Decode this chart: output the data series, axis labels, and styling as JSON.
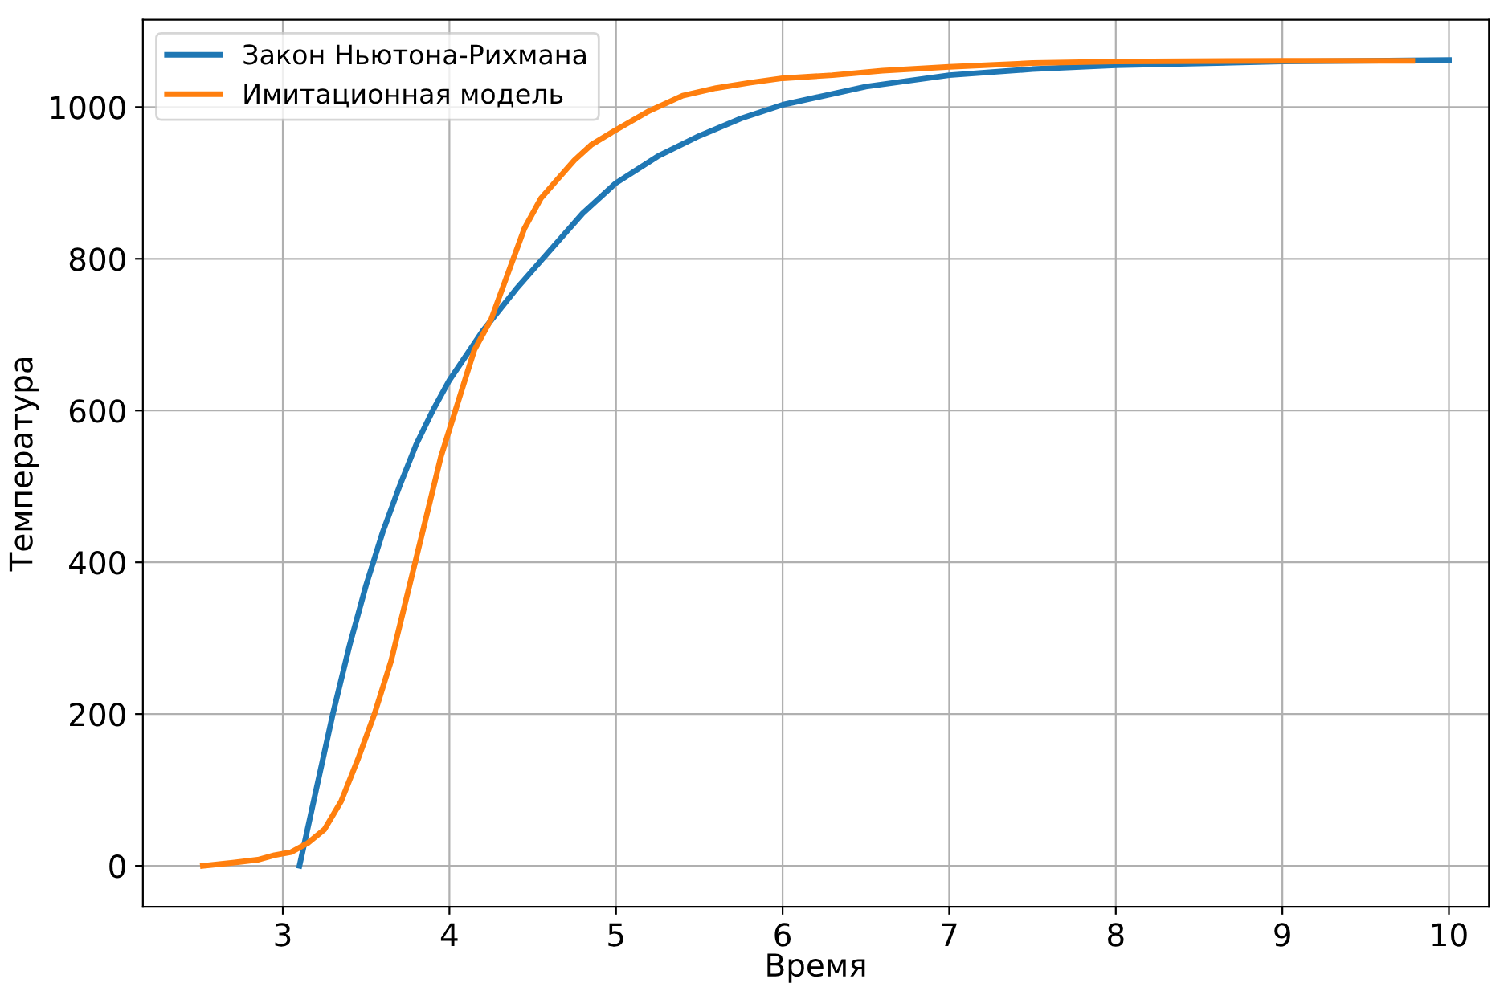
{
  "chart_data": {
    "type": "line",
    "xlabel": "Время",
    "ylabel": "Температура",
    "xlim": [
      2.16,
      10.24
    ],
    "ylim": [
      -54,
      1115
    ],
    "xticks": [
      3,
      4,
      5,
      6,
      7,
      8,
      9,
      10
    ],
    "yticks": [
      0,
      200,
      400,
      600,
      800,
      1000
    ],
    "grid": true,
    "legend": "top left",
    "line_style": "solid",
    "marker": "none",
    "series": [
      {
        "name": "Закон Ньютона-Рихмана",
        "color": "#1f77b4",
        "x": [
          3.1,
          3.2,
          3.3,
          3.4,
          3.5,
          3.6,
          3.7,
          3.8,
          3.9,
          4.0,
          4.2,
          4.4,
          4.6,
          4.8,
          5.0,
          5.25,
          5.5,
          5.75,
          6.0,
          6.5,
          7.0,
          7.5,
          8.0,
          9.0,
          10.0
        ],
        "values": [
          0,
          100,
          200,
          290,
          370,
          440,
          500,
          555,
          600,
          640,
          705,
          760,
          810,
          860,
          900,
          935,
          962,
          985,
          1003,
          1027,
          1042,
          1050,
          1055,
          1060,
          1062
        ]
      },
      {
        "name": "Имитационная модель",
        "color": "#ff7f0e",
        "x": [
          2.52,
          2.7,
          2.85,
          2.95,
          3.05,
          3.15,
          3.25,
          3.35,
          3.45,
          3.55,
          3.65,
          3.75,
          3.85,
          3.95,
          4.05,
          4.15,
          4.25,
          4.35,
          4.45,
          4.55,
          4.65,
          4.75,
          4.85,
          5.0,
          5.2,
          5.4,
          5.6,
          5.8,
          6.0,
          6.3,
          6.6,
          7.0,
          7.5,
          8.0,
          9.0,
          9.78
        ],
        "values": [
          0,
          4,
          8,
          14,
          18,
          30,
          48,
          85,
          140,
          200,
          270,
          360,
          450,
          540,
          610,
          680,
          720,
          780,
          840,
          880,
          905,
          930,
          950,
          970,
          995,
          1015,
          1025,
          1032,
          1038,
          1042,
          1048,
          1053,
          1058,
          1060,
          1061,
          1061
        ]
      }
    ]
  }
}
